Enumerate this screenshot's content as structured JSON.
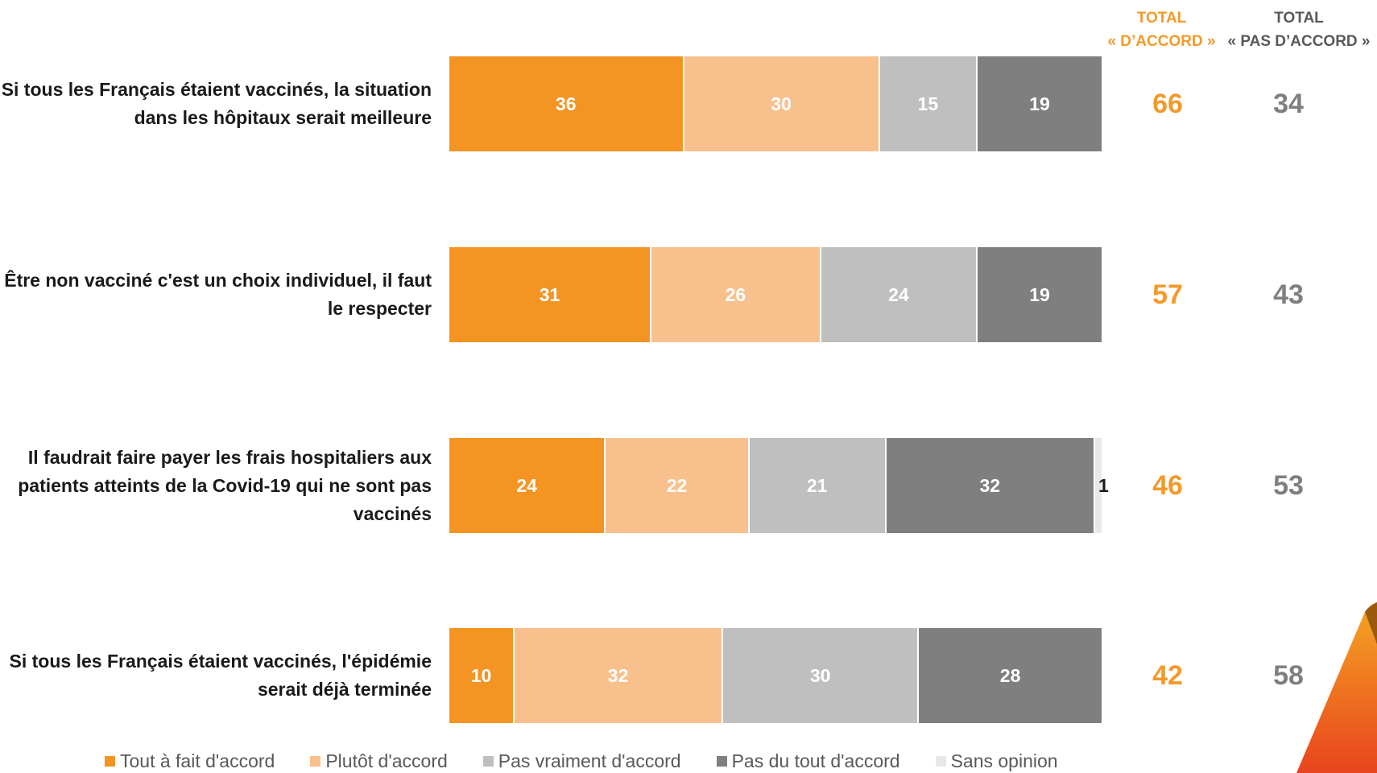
{
  "header": {
    "agree_line1": "TOTAL",
    "agree_line2": "« D’ACCORD »",
    "disagree_line1": "TOTAL",
    "disagree_line2": "« PAS D’ACCORD »"
  },
  "chart_data": {
    "type": "bar",
    "orientation": "horizontal",
    "stacked": true,
    "categories": [
      "Si tous les Français étaient vaccinés, la situation dans les hôpitaux serait meilleure",
      "Être non vacciné c'est un choix individuel, il faut le respecter",
      "Il faudrait faire payer les frais hospitaliers aux patients atteints de la Covid-19 qui ne sont pas vaccinés",
      "Si tous les Français étaient vaccinés, l'épidémie serait déjà terminée"
    ],
    "series": [
      {
        "name": "Tout à fait d'accord",
        "color": "#F39423",
        "label_color": "#ffffff",
        "values": [
          36,
          31,
          24,
          10
        ]
      },
      {
        "name": "Plutôt d'accord",
        "color": "#F8C08D",
        "label_color": "#ffffff",
        "values": [
          30,
          26,
          22,
          32
        ]
      },
      {
        "name": "Pas vraiment d'accord",
        "color": "#BFBFBF",
        "label_color": "#ffffff",
        "values": [
          15,
          24,
          21,
          30
        ]
      },
      {
        "name": "Pas du tout d'accord",
        "color": "#7F7F7F",
        "label_color": "#ffffff",
        "values": [
          19,
          19,
          32,
          28
        ]
      },
      {
        "name": "Sans opinion",
        "color": "#E8E8E8",
        "label_color": "#1a1a1a",
        "values": [
          0,
          0,
          1,
          0
        ]
      }
    ],
    "totals": {
      "agree": [
        66,
        57,
        46,
        42
      ],
      "disagree": [
        34,
        43,
        53,
        58
      ]
    },
    "xlim": [
      0,
      100
    ],
    "legend": "bottom"
  },
  "colors": {
    "accent": "#F39A2B",
    "total_agree": "#F39A2B",
    "total_disagree": "#7f7f7f"
  }
}
